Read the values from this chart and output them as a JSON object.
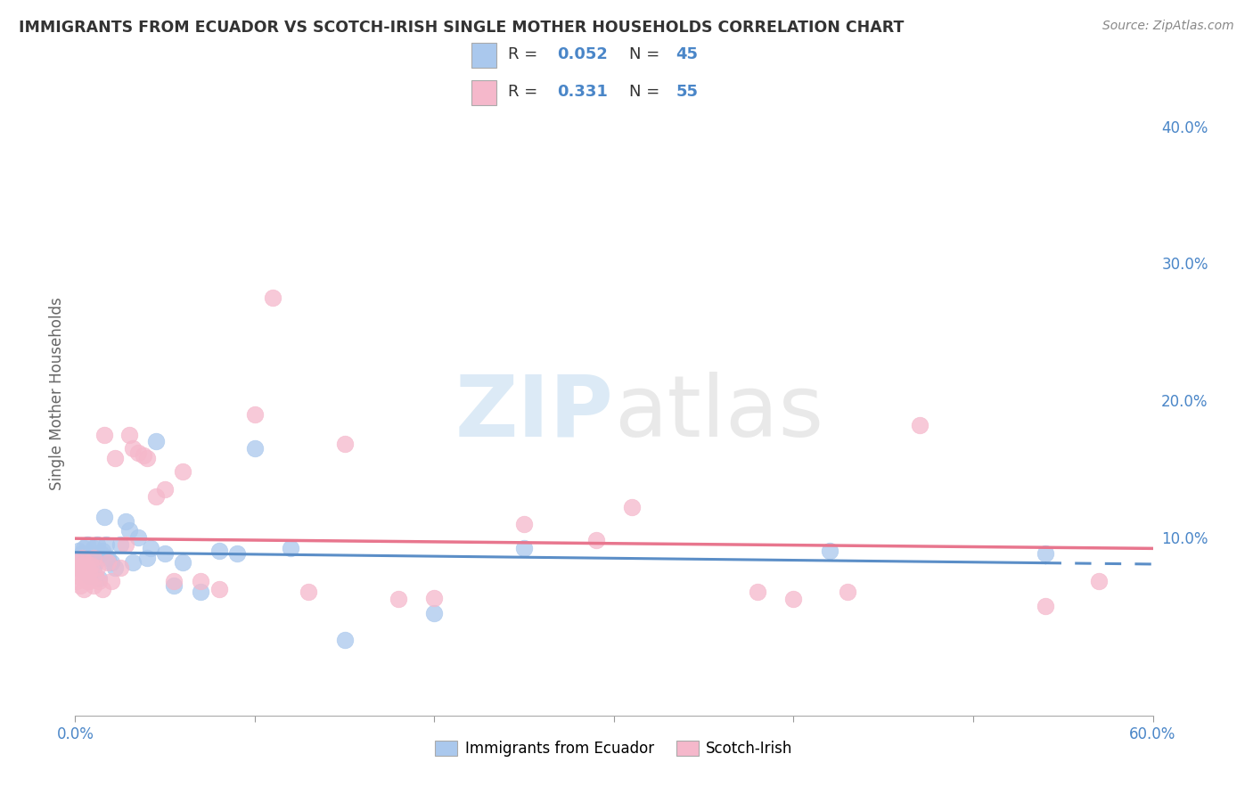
{
  "title": "IMMIGRANTS FROM ECUADOR VS SCOTCH-IRISH SINGLE MOTHER HOUSEHOLDS CORRELATION CHART",
  "source": "Source: ZipAtlas.com",
  "ylabel": "Single Mother Households",
  "xlim": [
    0.0,
    0.6
  ],
  "ylim": [
    -0.03,
    0.44
  ],
  "x_tick_labels_shown": [
    "0.0%",
    "60.0%"
  ],
  "x_ticks_shown": [
    0.0,
    0.6
  ],
  "y_ticks_right": [
    0.1,
    0.2,
    0.3,
    0.4
  ],
  "y_tick_labels_right": [
    "10.0%",
    "20.0%",
    "30.0%",
    "40.0%"
  ],
  "legend_ecuador_r": "0.052",
  "legend_ecuador_n": "45",
  "legend_scotch_r": "0.331",
  "legend_scotch_n": "55",
  "ecuador_color": "#aac8ed",
  "scotch_color": "#f5b8cb",
  "ecuador_line_color": "#5b8ec7",
  "scotch_line_color": "#e8768e",
  "ecuador_points_x": [
    0.001,
    0.002,
    0.003,
    0.004,
    0.005,
    0.005,
    0.006,
    0.007,
    0.007,
    0.008,
    0.008,
    0.009,
    0.01,
    0.01,
    0.011,
    0.012,
    0.013,
    0.014,
    0.015,
    0.016,
    0.017,
    0.018,
    0.02,
    0.022,
    0.025,
    0.028,
    0.03,
    0.032,
    0.035,
    0.04,
    0.042,
    0.045,
    0.05,
    0.055,
    0.06,
    0.07,
    0.08,
    0.09,
    0.1,
    0.12,
    0.15,
    0.2,
    0.25,
    0.42,
    0.54
  ],
  "ecuador_points_y": [
    0.082,
    0.09,
    0.078,
    0.088,
    0.075,
    0.092,
    0.085,
    0.08,
    0.095,
    0.072,
    0.088,
    0.085,
    0.078,
    0.092,
    0.082,
    0.095,
    0.07,
    0.088,
    0.09,
    0.115,
    0.095,
    0.085,
    0.082,
    0.078,
    0.095,
    0.112,
    0.105,
    0.082,
    0.1,
    0.085,
    0.092,
    0.17,
    0.088,
    0.065,
    0.082,
    0.06,
    0.09,
    0.088,
    0.165,
    0.092,
    0.025,
    0.045,
    0.092,
    0.09,
    0.088
  ],
  "scotch_points_x": [
    0.001,
    0.001,
    0.002,
    0.002,
    0.003,
    0.003,
    0.004,
    0.004,
    0.005,
    0.005,
    0.006,
    0.006,
    0.007,
    0.007,
    0.008,
    0.008,
    0.009,
    0.01,
    0.01,
    0.011,
    0.012,
    0.013,
    0.015,
    0.016,
    0.018,
    0.02,
    0.022,
    0.025,
    0.028,
    0.03,
    0.032,
    0.035,
    0.038,
    0.04,
    0.045,
    0.05,
    0.055,
    0.06,
    0.07,
    0.08,
    0.1,
    0.11,
    0.13,
    0.15,
    0.18,
    0.2,
    0.25,
    0.29,
    0.31,
    0.38,
    0.4,
    0.43,
    0.47,
    0.54,
    0.57
  ],
  "scotch_points_y": [
    0.068,
    0.078,
    0.072,
    0.082,
    0.065,
    0.078,
    0.075,
    0.085,
    0.062,
    0.08,
    0.07,
    0.082,
    0.068,
    0.078,
    0.075,
    0.068,
    0.08,
    0.065,
    0.085,
    0.072,
    0.078,
    0.068,
    0.062,
    0.175,
    0.082,
    0.068,
    0.158,
    0.078,
    0.095,
    0.175,
    0.165,
    0.162,
    0.16,
    0.158,
    0.13,
    0.135,
    0.068,
    0.148,
    0.068,
    0.062,
    0.19,
    0.275,
    0.06,
    0.168,
    0.055,
    0.056,
    0.11,
    0.098,
    0.122,
    0.06,
    0.055,
    0.06,
    0.182,
    0.05,
    0.068
  ]
}
